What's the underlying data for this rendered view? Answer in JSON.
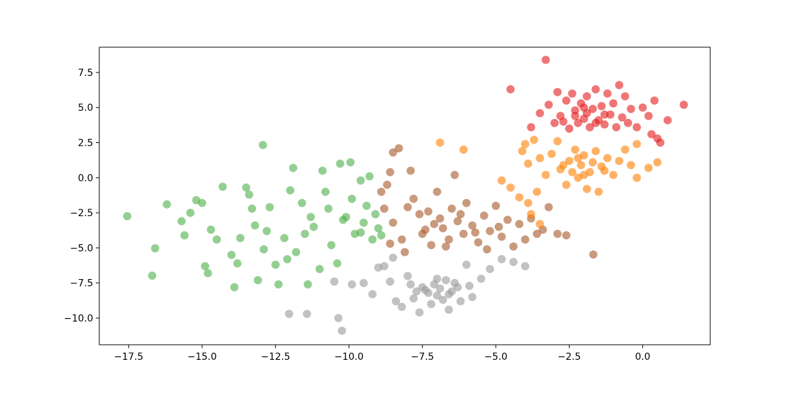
{
  "chart_data": {
    "type": "scatter",
    "title": "",
    "xlabel": "",
    "ylabel": "",
    "xlim": [
      -18.5,
      2.3
    ],
    "ylim": [
      -11.9,
      9.3
    ],
    "xticks": [
      -17.5,
      -15.0,
      -12.5,
      -10.0,
      -7.5,
      -5.0,
      -2.5,
      0.0
    ],
    "xtick_labels": [
      "−17.5",
      "−15.0",
      "−12.5",
      "−10.0",
      "−7.5",
      "−5.0",
      "−2.5",
      "0.0"
    ],
    "yticks": [
      -10.0,
      -7.5,
      -5.0,
      -2.5,
      0.0,
      2.5,
      5.0,
      7.5
    ],
    "ytick_labels": [
      "−10.0",
      "−7.5",
      "−5.0",
      "−2.5",
      "0.0",
      "2.5",
      "5.0",
      "7.5"
    ],
    "grid": false,
    "marker_alpha": 0.6,
    "series": [
      {
        "color": "#4daf4a",
        "points": [
          [
            -17.55,
            -2.74
          ],
          [
            -16.6,
            -5.03
          ],
          [
            -16.7,
            -6.98
          ],
          [
            -16.2,
            -1.9
          ],
          [
            -12.93,
            2.33
          ],
          [
            -14.3,
            -0.64
          ],
          [
            -15.7,
            -3.1
          ],
          [
            -15.6,
            -4.1
          ],
          [
            -15.4,
            -2.5
          ],
          [
            -15.2,
            -1.6
          ],
          [
            -15.0,
            -1.8
          ],
          [
            -14.9,
            -6.3
          ],
          [
            -14.8,
            -6.8
          ],
          [
            -14.7,
            -3.7
          ],
          [
            -14.5,
            -4.4
          ],
          [
            -14.0,
            -5.5
          ],
          [
            -13.9,
            -7.8
          ],
          [
            -13.8,
            -6.1
          ],
          [
            -13.7,
            -4.3
          ],
          [
            -13.5,
            -0.7
          ],
          [
            -13.4,
            -1.2
          ],
          [
            -13.2,
            -3.4
          ],
          [
            -13.1,
            -7.3
          ],
          [
            -12.9,
            -5.1
          ],
          [
            -12.7,
            -2.1
          ],
          [
            -12.5,
            -6.2
          ],
          [
            -12.4,
            -7.6
          ],
          [
            -12.2,
            -4.3
          ],
          [
            -12.0,
            -0.9
          ],
          [
            -11.9,
            0.7
          ],
          [
            -11.8,
            -5.3
          ],
          [
            -11.6,
            -1.8
          ],
          [
            -11.4,
            -7.6
          ],
          [
            -11.2,
            -3.5
          ],
          [
            -11.0,
            -6.5
          ],
          [
            -10.9,
            0.5
          ],
          [
            -10.7,
            -2.2
          ],
          [
            -10.6,
            -4.8
          ],
          [
            -10.4,
            -6.1
          ],
          [
            -10.3,
            1.0
          ],
          [
            -10.1,
            -2.8
          ],
          [
            -9.95,
            1.1
          ],
          [
            -9.8,
            -4.0
          ],
          [
            -9.6,
            -0.2
          ],
          [
            -9.5,
            -3.2
          ],
          [
            -9.3,
            0.1
          ],
          [
            -9.2,
            -4.4
          ],
          [
            -9.1,
            -2.6
          ],
          [
            -9.0,
            -3.6
          ],
          [
            -8.9,
            -4.1
          ],
          [
            -9.6,
            -3.9
          ],
          [
            -10.2,
            -3.0
          ],
          [
            -11.5,
            -4.0
          ],
          [
            -12.1,
            -5.8
          ],
          [
            -12.8,
            -3.8
          ],
          [
            -13.3,
            -2.2
          ],
          [
            -10.8,
            -1.0
          ],
          [
            -11.3,
            -2.8
          ],
          [
            -9.9,
            -1.5
          ],
          [
            -9.4,
            -2.0
          ]
        ]
      },
      {
        "color": "#999999",
        "points": [
          [
            -12.04,
            -9.7
          ],
          [
            -11.43,
            -9.7
          ],
          [
            -10.36,
            -10.0
          ],
          [
            -10.24,
            -10.9
          ],
          [
            -10.5,
            -7.4
          ],
          [
            -9.9,
            -7.6
          ],
          [
            -9.5,
            -7.5
          ],
          [
            -9.2,
            -8.3
          ],
          [
            -8.8,
            -6.3
          ],
          [
            -8.6,
            -7.4
          ],
          [
            -8.4,
            -8.8
          ],
          [
            -8.2,
            -9.2
          ],
          [
            -8.0,
            -7.0
          ],
          [
            -7.8,
            -8.6
          ],
          [
            -7.6,
            -9.6
          ],
          [
            -7.5,
            -7.8
          ],
          [
            -7.3,
            -8.2
          ],
          [
            -7.2,
            -9.0
          ],
          [
            -7.1,
            -7.6
          ],
          [
            -7.0,
            -8.4
          ],
          [
            -6.9,
            -7.9
          ],
          [
            -6.8,
            -8.7
          ],
          [
            -6.7,
            -7.3
          ],
          [
            -6.6,
            -9.4
          ],
          [
            -6.5,
            -8.1
          ],
          [
            -6.4,
            -7.5
          ],
          [
            -6.2,
            -8.8
          ],
          [
            -6.0,
            -6.2
          ],
          [
            -5.9,
            -7.7
          ],
          [
            -5.8,
            -8.5
          ],
          [
            -5.5,
            -7.2
          ],
          [
            -5.2,
            -6.5
          ],
          [
            -4.8,
            -5.8
          ],
          [
            -4.4,
            -6.0
          ],
          [
            -4.0,
            -6.3
          ],
          [
            -7.4,
            -8.0
          ],
          [
            -7.0,
            -7.2
          ],
          [
            -6.6,
            -8.3
          ],
          [
            -7.7,
            -8.1
          ],
          [
            -6.3,
            -7.8
          ],
          [
            -7.9,
            -7.6
          ],
          [
            -8.5,
            -5.7
          ],
          [
            -9.0,
            -6.4
          ]
        ]
      },
      {
        "color": "#a65628",
        "points": [
          [
            -8.5,
            1.8
          ],
          [
            -8.3,
            2.1
          ],
          [
            -8.6,
            0.4
          ],
          [
            -7.9,
            0.5
          ],
          [
            -6.4,
            0.2
          ],
          [
            -8.7,
            -0.5
          ],
          [
            -8.9,
            -1.0
          ],
          [
            -8.8,
            -2.2
          ],
          [
            -8.5,
            -3.2
          ],
          [
            -8.2,
            -4.4
          ],
          [
            -8.6,
            -4.7
          ],
          [
            -8.1,
            -5.3
          ],
          [
            -7.8,
            -1.5
          ],
          [
            -7.6,
            -2.6
          ],
          [
            -7.4,
            -3.7
          ],
          [
            -7.2,
            -4.8
          ],
          [
            -7.0,
            -1.0
          ],
          [
            -6.9,
            -2.9
          ],
          [
            -6.8,
            -3.6
          ],
          [
            -6.6,
            -4.4
          ],
          [
            -6.5,
            -2.2
          ],
          [
            -6.3,
            -3.1
          ],
          [
            -6.1,
            -4.0
          ],
          [
            -6.0,
            -1.8
          ],
          [
            -5.8,
            -3.4
          ],
          [
            -5.6,
            -4.6
          ],
          [
            -5.4,
            -2.7
          ],
          [
            -5.2,
            -3.8
          ],
          [
            -5.0,
            -2.0
          ],
          [
            -4.8,
            -4.2
          ],
          [
            -4.6,
            -3.0
          ],
          [
            -4.4,
            -4.9
          ],
          [
            -4.2,
            -3.3
          ],
          [
            -4.0,
            -4.4
          ],
          [
            -3.8,
            -2.9
          ],
          [
            -3.6,
            -4.0
          ],
          [
            -3.4,
            -3.7
          ],
          [
            -3.2,
            -2.1
          ],
          [
            -2.9,
            -4.0
          ],
          [
            -2.6,
            -4.1
          ],
          [
            -1.68,
            -5.47
          ],
          [
            -7.5,
            -4.0
          ],
          [
            -7.1,
            -3.3
          ],
          [
            -6.7,
            -4.9
          ],
          [
            -6.2,
            -2.6
          ],
          [
            -5.7,
            -3.9
          ],
          [
            -5.3,
            -5.1
          ],
          [
            -4.9,
            -3.5
          ],
          [
            -8.0,
            -2.1
          ],
          [
            -7.3,
            -2.4
          ]
        ]
      },
      {
        "color": "#ff7f00",
        "points": [
          [
            -6.9,
            2.5
          ],
          [
            -6.1,
            2.0
          ],
          [
            -4.8,
            -0.2
          ],
          [
            -4.5,
            -0.7
          ],
          [
            -4.2,
            -1.4
          ],
          [
            -3.9,
            -1.8
          ],
          [
            -3.8,
            -2.6
          ],
          [
            -3.5,
            -3.3
          ],
          [
            -3.6,
            -1.0
          ],
          [
            -3.9,
            1.0
          ],
          [
            -4.1,
            1.9
          ],
          [
            -4.0,
            2.4
          ],
          [
            -3.7,
            2.7
          ],
          [
            -3.5,
            1.4
          ],
          [
            -3.3,
            0.2
          ],
          [
            -3.1,
            1.7
          ],
          [
            -2.9,
            2.6
          ],
          [
            -2.8,
            0.6
          ],
          [
            -2.6,
            -0.5
          ],
          [
            -2.5,
            1.2
          ],
          [
            -2.3,
            2.0
          ],
          [
            -2.2,
            0.0
          ],
          [
            -2.1,
            0.9
          ],
          [
            -2.0,
            1.6
          ],
          [
            -1.9,
            -0.8
          ],
          [
            -1.8,
            0.4
          ],
          [
            -1.6,
            1.9
          ],
          [
            -1.5,
            -1.0
          ],
          [
            -1.4,
            0.8
          ],
          [
            -1.2,
            1.4
          ],
          [
            -1.0,
            0.2
          ],
          [
            -0.8,
            1.2
          ],
          [
            -0.6,
            2.0
          ],
          [
            -0.4,
            0.9
          ],
          [
            -0.2,
            0.0
          ],
          [
            -0.2,
            2.4
          ],
          [
            0.2,
            0.7
          ],
          [
            0.5,
            1.1
          ],
          [
            -2.7,
            0.9
          ],
          [
            -2.4,
            0.4
          ],
          [
            -1.7,
            1.1
          ],
          [
            -2.0,
            0.2
          ],
          [
            -1.3,
            0.5
          ],
          [
            -2.2,
            1.4
          ]
        ]
      },
      {
        "color": "#e41a1c",
        "points": [
          [
            -3.3,
            8.4
          ],
          [
            -4.5,
            6.3
          ],
          [
            1.4,
            5.2
          ],
          [
            0.85,
            4.1
          ],
          [
            -3.8,
            3.6
          ],
          [
            -3.5,
            4.6
          ],
          [
            -3.2,
            5.2
          ],
          [
            -3.0,
            3.9
          ],
          [
            -2.9,
            6.1
          ],
          [
            -2.8,
            4.4
          ],
          [
            -2.6,
            5.5
          ],
          [
            -2.5,
            3.5
          ],
          [
            -2.4,
            6.0
          ],
          [
            -2.3,
            4.8
          ],
          [
            -2.2,
            3.9
          ],
          [
            -2.1,
            5.3
          ],
          [
            -2.0,
            4.2
          ],
          [
            -1.9,
            5.8
          ],
          [
            -1.8,
            3.6
          ],
          [
            -1.7,
            4.9
          ],
          [
            -1.6,
            6.3
          ],
          [
            -1.5,
            4.1
          ],
          [
            -1.4,
            5.1
          ],
          [
            -1.3,
            3.8
          ],
          [
            -1.2,
            6.0
          ],
          [
            -1.1,
            4.5
          ],
          [
            -1.0,
            5.3
          ],
          [
            -0.9,
            3.6
          ],
          [
            -0.8,
            6.6
          ],
          [
            -0.7,
            4.3
          ],
          [
            -0.6,
            5.8
          ],
          [
            -0.5,
            3.9
          ],
          [
            -0.4,
            4.9
          ],
          [
            -0.2,
            3.6
          ],
          [
            0.0,
            5.0
          ],
          [
            0.2,
            4.4
          ],
          [
            0.3,
            3.1
          ],
          [
            0.4,
            5.5
          ],
          [
            0.5,
            2.8
          ],
          [
            0.6,
            2.5
          ],
          [
            -2.7,
            4.0
          ],
          [
            -2.3,
            4.4
          ],
          [
            -1.9,
            4.6
          ],
          [
            -1.6,
            3.9
          ],
          [
            -1.3,
            4.5
          ],
          [
            -2.0,
            5.0
          ]
        ]
      }
    ]
  }
}
